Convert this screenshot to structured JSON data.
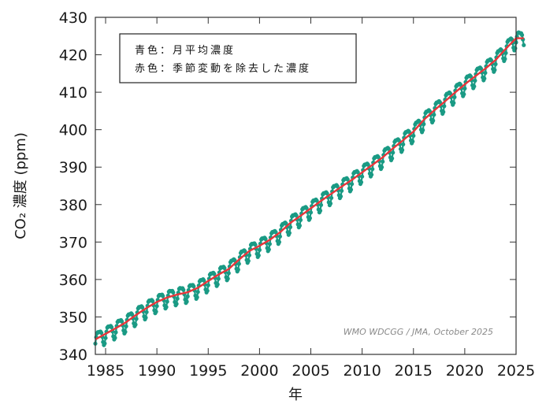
{
  "chart_data": {
    "type": "line",
    "xlabel": "年",
    "ylabel": "CO₂ 濃度 (ppm)",
    "xlim": [
      1984,
      2025
    ],
    "ylim": [
      340,
      430
    ],
    "x_ticks": [
      1985,
      1990,
      1995,
      2000,
      2005,
      2010,
      2015,
      2020,
      2025
    ],
    "y_ticks": [
      340,
      350,
      360,
      370,
      380,
      390,
      400,
      410,
      420,
      430
    ],
    "x_tick_labels": [
      "1985",
      "1990",
      "1995",
      "2000",
      "2005",
      "2010",
      "2015",
      "2020",
      "2025"
    ],
    "y_tick_labels": [
      "340",
      "350",
      "360",
      "370",
      "380",
      "390",
      "400",
      "410",
      "420",
      "430"
    ],
    "legend": {
      "position": "top-left",
      "lines": [
        "青色：月平均濃度",
        "赤色：季節変動を除去した濃度"
      ]
    },
    "annotation": "WMO WDCGG / JMA, October 2025",
    "series": [
      {
        "name": "月平均濃度",
        "color": "#1a9a84",
        "marker": "circle",
        "seasonal_amplitude_ppm": 2.8,
        "x": [
          1984,
          1985,
          1986,
          1987,
          1988,
          1989,
          1990,
          1991,
          1992,
          1993,
          1994,
          1995,
          1996,
          1997,
          1998,
          1999,
          2000,
          2001,
          2002,
          2003,
          2004,
          2005,
          2006,
          2007,
          2008,
          2009,
          2010,
          2011,
          2012,
          2013,
          2014,
          2015,
          2016,
          2017,
          2018,
          2019,
          2020,
          2021,
          2022,
          2023,
          2024,
          2025
        ],
        "values": [
          344.0,
          345.5,
          347.0,
          348.6,
          350.6,
          352.4,
          354.0,
          355.2,
          356.0,
          356.6,
          357.8,
          359.6,
          361.3,
          362.8,
          365.3,
          367.6,
          369.0,
          370.6,
          372.6,
          375.1,
          377.0,
          379.0,
          381.0,
          382.9,
          384.8,
          386.6,
          388.6,
          390.6,
          392.6,
          395.0,
          397.2,
          399.5,
          402.6,
          405.1,
          407.4,
          409.8,
          412.1,
          414.2,
          416.3,
          418.6,
          421.6,
          424.4
        ]
      },
      {
        "name": "季節変動を除去した濃度",
        "color": "#e8353a",
        "x": [
          1984,
          1985,
          1986,
          1987,
          1988,
          1989,
          1990,
          1991,
          1992,
          1993,
          1994,
          1995,
          1996,
          1997,
          1998,
          1999,
          2000,
          2001,
          2002,
          2003,
          2004,
          2005,
          2006,
          2007,
          2008,
          2009,
          2010,
          2011,
          2012,
          2013,
          2014,
          2015,
          2016,
          2017,
          2018,
          2019,
          2020,
          2021,
          2022,
          2023,
          2024,
          2025
        ],
        "values": [
          344.0,
          345.5,
          347.0,
          348.6,
          350.6,
          352.4,
          354.0,
          355.2,
          356.0,
          356.6,
          357.8,
          359.6,
          361.3,
          362.8,
          365.3,
          367.6,
          369.0,
          370.6,
          372.6,
          375.1,
          377.0,
          379.0,
          381.0,
          382.9,
          384.8,
          386.6,
          388.6,
          390.6,
          392.6,
          395.0,
          397.2,
          399.5,
          402.6,
          405.1,
          407.4,
          409.8,
          412.1,
          414.2,
          416.3,
          418.6,
          421.6,
          424.4
        ]
      }
    ]
  }
}
